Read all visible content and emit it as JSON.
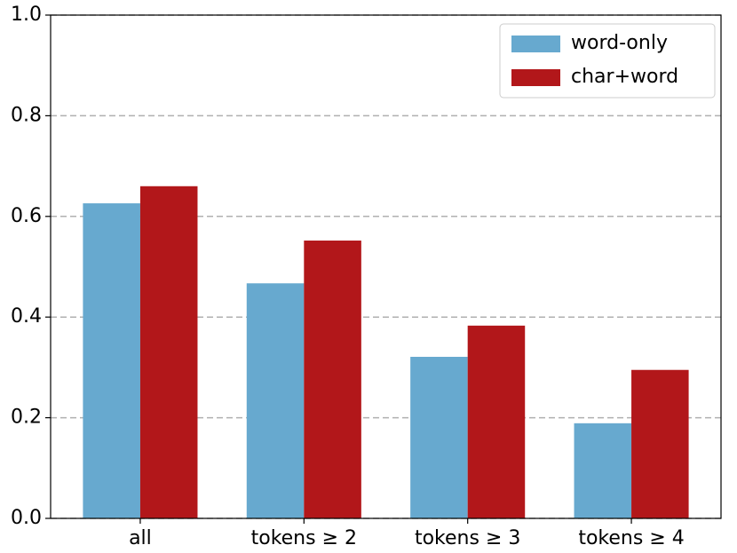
{
  "chart_data": {
    "type": "bar",
    "categories": [
      "all",
      "tokens ≥ 2",
      "tokens ≥ 3",
      "tokens ≥ 4"
    ],
    "series": [
      {
        "name": "word-only",
        "color": "#67a9cf",
        "values": [
          0.626,
          0.467,
          0.321,
          0.189
        ]
      },
      {
        "name": "char+word",
        "color": "#b2171a",
        "values": [
          0.66,
          0.552,
          0.383,
          0.295
        ]
      }
    ],
    "ylim": [
      0,
      1
    ],
    "yticks": [
      {
        "value": 0,
        "label": "0.0"
      },
      {
        "value": 0.2,
        "label": "0.2"
      },
      {
        "value": 0.4,
        "label": "0.4"
      },
      {
        "value": 0.6,
        "label": "0.6"
      },
      {
        "value": 0.8,
        "label": "0.8"
      },
      {
        "value": 1,
        "label": "1.0"
      }
    ],
    "grid": true,
    "legend": "upper right"
  }
}
